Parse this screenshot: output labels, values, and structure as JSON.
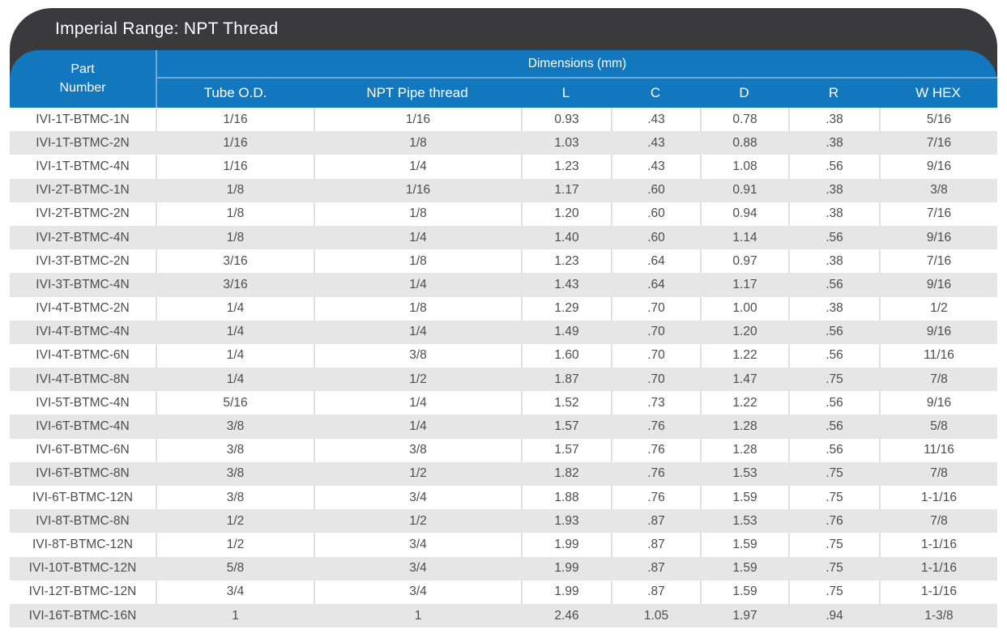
{
  "title": "Imperial Range: NPT Thread",
  "header": {
    "part_number_line1": "Part",
    "part_number_line2": "Number",
    "dimensions_label": "Dimensions (mm)",
    "columns": [
      "Tube O.D.",
      "NPT Pipe thread",
      "L",
      "C",
      "D",
      "R",
      "W HEX"
    ]
  },
  "colors": {
    "header_dark": "#3a3a3c",
    "header_blue": "#1377be",
    "row_alternate": "#e6e6e6",
    "row_divider": "#e0e0e0",
    "body_text": "#4d4d4d"
  },
  "table": {
    "rows": [
      [
        "IVI-1T-BTMC-1N",
        "1/16",
        "1/16",
        "0.93",
        ".43",
        "0.78",
        ".38",
        "5/16"
      ],
      [
        "IVI-1T-BTMC-2N",
        "1/16",
        "1/8",
        "1.03",
        ".43",
        "0.88",
        ".38",
        "7/16"
      ],
      [
        "IVI-1T-BTMC-4N",
        "1/16",
        "1/4",
        "1.23",
        ".43",
        "1.08",
        ".56",
        "9/16"
      ],
      [
        "IVI-2T-BTMC-1N",
        "1/8",
        "1/16",
        "1.17",
        ".60",
        "0.91",
        ".38",
        "3/8"
      ],
      [
        "IVI-2T-BTMC-2N",
        "1/8",
        "1/8",
        "1.20",
        ".60",
        "0.94",
        ".38",
        "7/16"
      ],
      [
        "IVI-2T-BTMC-4N",
        "1/8",
        "1/4",
        "1.40",
        ".60",
        "1.14",
        ".56",
        "9/16"
      ],
      [
        "IVI-3T-BTMC-2N",
        "3/16",
        "1/8",
        "1.23",
        ".64",
        "0.97",
        ".38",
        "7/16"
      ],
      [
        "IVI-3T-BTMC-4N",
        "3/16",
        "1/4",
        "1.43",
        ".64",
        "1.17",
        ".56",
        "9/16"
      ],
      [
        "IVI-4T-BTMC-2N",
        "1/4",
        "1/8",
        "1.29",
        ".70",
        "1.00",
        ".38",
        "1/2"
      ],
      [
        "IVI-4T-BTMC-4N",
        "1/4",
        "1/4",
        "1.49",
        ".70",
        "1.20",
        ".56",
        "9/16"
      ],
      [
        "IVI-4T-BTMC-6N",
        "1/4",
        "3/8",
        "1.60",
        ".70",
        "1.22",
        ".56",
        "11/16"
      ],
      [
        "IVI-4T-BTMC-8N",
        "1/4",
        "1/2",
        "1.87",
        ".70",
        "1.47",
        ".75",
        "7/8"
      ],
      [
        "IVI-5T-BTMC-4N",
        "5/16",
        "1/4",
        "1.52",
        ".73",
        "1.22",
        ".56",
        "9/16"
      ],
      [
        "IVI-6T-BTMC-4N",
        "3/8",
        "1/4",
        "1.57",
        ".76",
        "1.28",
        ".56",
        "5/8"
      ],
      [
        "IVI-6T-BTMC-6N",
        "3/8",
        "3/8",
        "1.57",
        ".76",
        "1.28",
        ".56",
        "11/16"
      ],
      [
        "IVI-6T-BTMC-8N",
        "3/8",
        "1/2",
        "1.82",
        ".76",
        "1.53",
        ".75",
        "7/8"
      ],
      [
        "IVI-6T-BTMC-12N",
        "3/8",
        "3/4",
        "1.88",
        ".76",
        "1.59",
        ".75",
        "1-1/16"
      ],
      [
        "IVI-8T-BTMC-8N",
        "1/2",
        "1/2",
        "1.93",
        ".87",
        "1.53",
        ".76",
        "7/8"
      ],
      [
        "IVI-8T-BTMC-12N",
        "1/2",
        "3/4",
        "1.99",
        ".87",
        "1.59",
        ".75",
        "1-1/16"
      ],
      [
        "IVI-10T-BTMC-12N",
        "5/8",
        "3/4",
        "1.99",
        ".87",
        "1.59",
        ".75",
        "1-1/16"
      ],
      [
        "IVI-12T-BTMC-12N",
        "3/4",
        "3/4",
        "1.99",
        ".87",
        "1.59",
        ".75",
        "1-1/16"
      ],
      [
        "IVI-16T-BTMC-16N",
        "1",
        "1",
        "2.46",
        "1.05",
        "1.97",
        ".94",
        "1-3/8"
      ]
    ]
  }
}
